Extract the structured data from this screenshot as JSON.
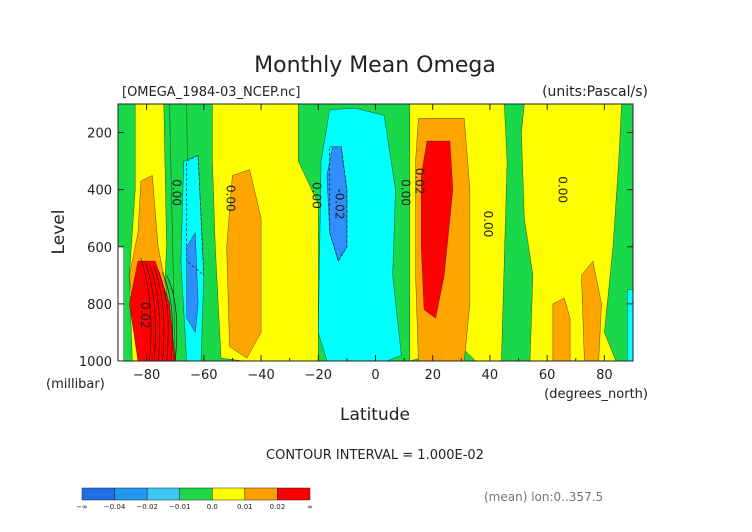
{
  "chart_data": {
    "type": "heatmap",
    "title": "Monthly Mean Omega",
    "file_label": "[OMEGA_1984-03_NCEP.nc]",
    "units_label": "(units:Pascal/s)",
    "xlabel": "Latitude",
    "x_unit_label": "(degrees_north)",
    "ylabel": "Level",
    "y_unit_label": "(millibar)",
    "xlim": [
      -90,
      90
    ],
    "ylim": [
      1000,
      100
    ],
    "x_ticks": [
      -80,
      -60,
      -40,
      -20,
      0,
      20,
      40,
      60,
      80
    ],
    "x_tick_labels": [
      "−80",
      "−60",
      "−40",
      "−20",
      "0",
      "20",
      "40",
      "60",
      "80"
    ],
    "y_ticks": [
      200,
      400,
      600,
      800,
      1000
    ],
    "y_tick_labels": [
      "200",
      "400",
      "600",
      "800",
      "1000"
    ],
    "contour_interval_text": "CONTOUR INTERVAL = 1.000E-02",
    "mean_text": "(mean) lon:0..357.5",
    "levels": [
      {
        "label": "−∞",
        "color": "#1e6fe8"
      },
      {
        "label": "−0.04",
        "color": "#1e9af0"
      },
      {
        "label": "−0.02",
        "color": "#3cc8f4"
      },
      {
        "label": "−0.01",
        "color": "#1ed84a"
      },
      {
        "label": "0.0",
        "color": "#ffff00"
      },
      {
        "label": "0.01",
        "color": "#ff9f00"
      },
      {
        "label": "0.02",
        "color": "#ff0000"
      },
      {
        "label": "∞",
        "color": null
      }
    ],
    "colors": {
      "green": "#19d84a",
      "yellow": "#ffff00",
      "orange": "#ffa500",
      "red": "#ff0000",
      "cyan": "#00ffff",
      "blue": "#2f8fff",
      "darkblue": "#1e6fe8"
    },
    "regions": [
      {
        "name": "band-yellow-sh",
        "fill": "yellow",
        "lat": [
          -84,
          -74
        ],
        "p": [
          1000,
          100
        ]
      },
      {
        "name": "band-green-sh",
        "fill": "green",
        "lat": [
          -70,
          -58
        ],
        "p": [
          1000,
          100
        ]
      },
      {
        "name": "band-yellow-mid",
        "fill": "yellow",
        "lat": [
          -57,
          -26
        ],
        "p": [
          1000,
          100
        ]
      },
      {
        "name": "band-cyan-tropics",
        "fill": "cyan",
        "lat": [
          -18,
          8
        ],
        "p": [
          1000,
          100
        ]
      },
      {
        "name": "band-green-eq",
        "fill": "green",
        "lat": [
          8,
          12
        ],
        "p": [
          1000,
          100
        ]
      },
      {
        "name": "band-yellow-nh",
        "fill": "yellow",
        "lat": [
          12,
          46
        ],
        "p": [
          1000,
          100
        ]
      },
      {
        "name": "band-orange-nh",
        "fill": "orange",
        "lat": [
          14,
          33
        ],
        "p": [
          1000,
          150
        ]
      },
      {
        "name": "core-red-nh",
        "fill": "red",
        "lat": [
          16,
          27
        ],
        "p": [
          850,
          250
        ]
      },
      {
        "name": "band-yellow-high",
        "fill": "yellow",
        "lat": [
          50,
          84
        ],
        "p": [
          1000,
          100
        ]
      }
    ],
    "contour_labels": [
      {
        "text": "0.00",
        "lat": -71,
        "p": 410
      },
      {
        "text": "0.00",
        "lat": -52,
        "p": 430
      },
      {
        "text": "0.00",
        "lat": -22,
        "p": 420
      },
      {
        "text": "-0.02",
        "lat": -14,
        "p": 450
      },
      {
        "text": "0.00",
        "lat": 9,
        "p": 410
      },
      {
        "text": "0.02",
        "lat": 14,
        "p": 370
      },
      {
        "text": "0.00",
        "lat": 38,
        "p": 520
      },
      {
        "text": "0.00",
        "lat": 64,
        "p": 400
      },
      {
        "text": "0.02",
        "lat": -82,
        "p": 840
      }
    ]
  }
}
